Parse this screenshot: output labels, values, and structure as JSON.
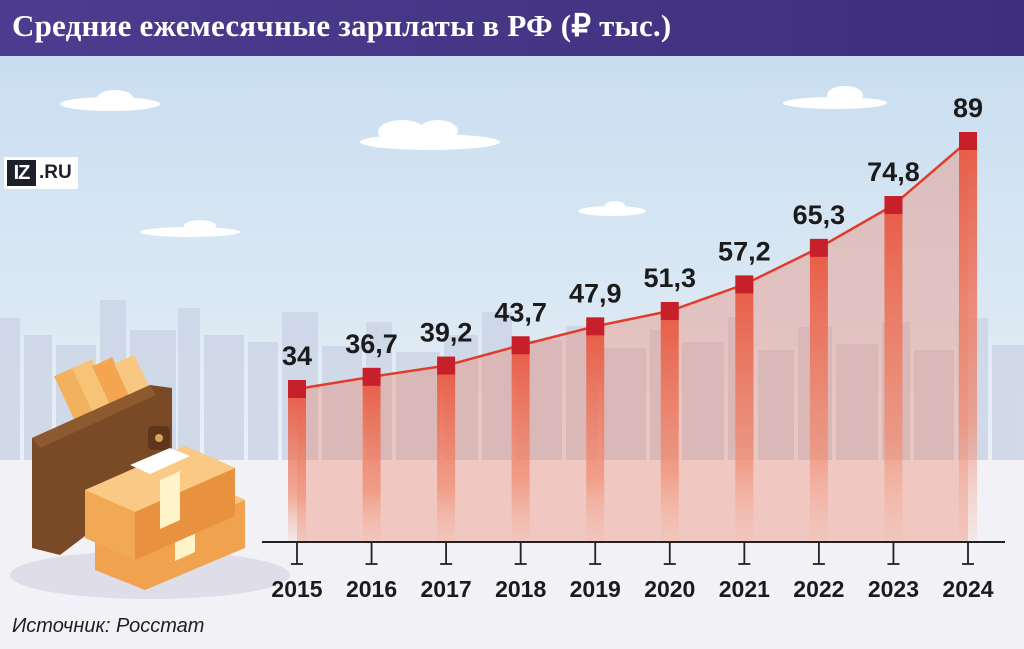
{
  "header": {
    "title": "Средние ежемесячные зарплаты в РФ (₽ тыс.)"
  },
  "logo": {
    "badge": "IZ",
    "domain": ".RU"
  },
  "source": "Источник: Росстат",
  "colors": {
    "header_bg": "#46378a",
    "line": "#e23b2c",
    "marker": "#c8202a",
    "bar": "#ee7a5e",
    "sky": "#d6e8f6"
  },
  "chart_data": {
    "type": "line",
    "title": "Средние ежемесячные зарплаты в РФ (₽ тыс.)",
    "xlabel": "",
    "ylabel": "₽ тыс.",
    "categories": [
      "2015",
      "2016",
      "2017",
      "2018",
      "2019",
      "2020",
      "2021",
      "2022",
      "2023",
      "2024"
    ],
    "values": [
      34,
      36.7,
      39.2,
      43.7,
      47.9,
      51.3,
      57.2,
      65.3,
      74.8,
      89
    ],
    "labels": [
      "34",
      "36,7",
      "39,2",
      "43,7",
      "47,9",
      "51,3",
      "57,2",
      "65,3",
      "74,8",
      "89"
    ],
    "ylim": [
      0,
      89
    ],
    "grid": false,
    "legend": "none"
  }
}
